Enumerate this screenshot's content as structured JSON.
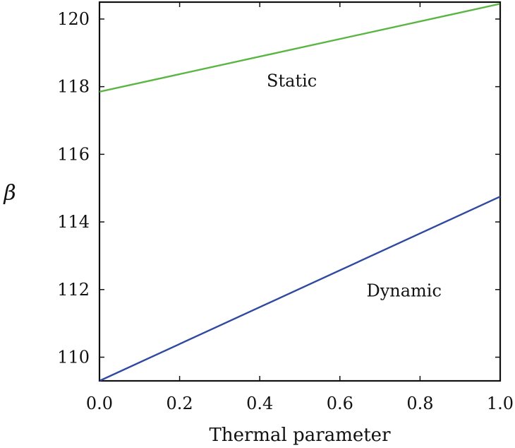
{
  "chart_data": {
    "type": "line",
    "title": "",
    "xlabel": "Thermal parameter",
    "ylabel": "β",
    "xlim": [
      0.0,
      1.0
    ],
    "ylim": [
      109.3,
      120.5
    ],
    "xticks": [
      "0.0",
      "0.2",
      "0.4",
      "0.6",
      "0.8",
      "1.0"
    ],
    "yticks": [
      "110",
      "112",
      "114",
      "116",
      "118",
      "120"
    ],
    "grid": false,
    "series": [
      {
        "name": "Static",
        "color": "#5bb543",
        "x": [
          0.0,
          1.0
        ],
        "y": [
          117.85,
          120.45
        ]
      },
      {
        "name": "Dynamic",
        "color": "#2f49a0",
        "x": [
          0.0,
          1.0
        ],
        "y": [
          109.3,
          114.75
        ]
      }
    ],
    "annotations": [
      {
        "text": "Static",
        "x": 0.48,
        "y": 118.0
      },
      {
        "text": "Dynamic",
        "x": 0.76,
        "y": 111.8
      }
    ]
  }
}
